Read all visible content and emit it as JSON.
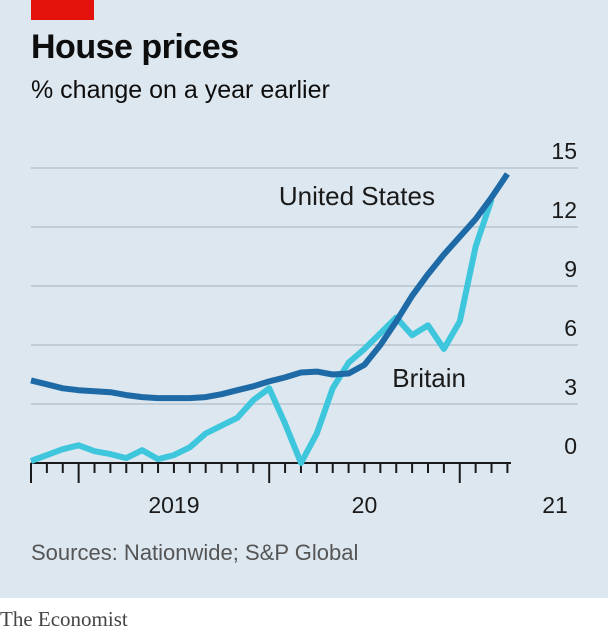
{
  "header": {
    "title": "House prices",
    "subtitle": "% change on a year earlier"
  },
  "footer": {
    "source": "Sources: Nationwide; S&P Global",
    "brand": "The Economist"
  },
  "colors": {
    "background": "#dce7ef",
    "accent_tag": "#e3120b",
    "united_states": "#1e6aa6",
    "britain": "#3ec6dd",
    "gridline": "#b7c4cd",
    "axis": "#1a1a1a"
  },
  "chart_data": {
    "type": "line",
    "title": "House prices",
    "subtitle": "% change on a year earlier",
    "xlabel": "",
    "ylabel": "",
    "x_range": [
      "2018-10",
      "2021-07"
    ],
    "ylim": [
      0,
      15
    ],
    "y_ticks": [
      0,
      3,
      6,
      9,
      12,
      15
    ],
    "y_tick_labels": [
      "0",
      "3",
      "6",
      "9",
      "12",
      "15"
    ],
    "y_axis_side": "right",
    "grid": true,
    "x_tick_labels": [
      {
        "label": "2019",
        "year": 2019
      },
      {
        "label": "20",
        "year": 2020
      },
      {
        "label": "21",
        "year": 2021
      }
    ],
    "series": [
      {
        "name": "United States",
        "color_key": "united_states",
        "points": [
          [
            "2018-10",
            4.2
          ],
          [
            "2018-11",
            4.0
          ],
          [
            "2018-12",
            3.8
          ],
          [
            "2019-01",
            3.7
          ],
          [
            "2019-02",
            3.65
          ],
          [
            "2019-03",
            3.6
          ],
          [
            "2019-04",
            3.45
          ],
          [
            "2019-05",
            3.35
          ],
          [
            "2019-06",
            3.3
          ],
          [
            "2019-07",
            3.3
          ],
          [
            "2019-08",
            3.3
          ],
          [
            "2019-09",
            3.35
          ],
          [
            "2019-10",
            3.5
          ],
          [
            "2019-11",
            3.7
          ],
          [
            "2019-12",
            3.9
          ],
          [
            "2020-01",
            4.15
          ],
          [
            "2020-02",
            4.35
          ],
          [
            "2020-03",
            4.6
          ],
          [
            "2020-04",
            4.65
          ],
          [
            "2020-05",
            4.5
          ],
          [
            "2020-06",
            4.55
          ],
          [
            "2020-07",
            5.0
          ],
          [
            "2020-08",
            6.0
          ],
          [
            "2020-09",
            7.2
          ],
          [
            "2020-10",
            8.5
          ],
          [
            "2020-11",
            9.6
          ],
          [
            "2020-12",
            10.6
          ],
          [
            "2021-01",
            11.5
          ],
          [
            "2021-02",
            12.4
          ],
          [
            "2021-03",
            13.5
          ],
          [
            "2021-04",
            14.7
          ]
        ]
      },
      {
        "name": "Britain",
        "color_key": "britain",
        "points": [
          [
            "2018-10",
            0.1
          ],
          [
            "2018-11",
            0.4
          ],
          [
            "2018-12",
            0.7
          ],
          [
            "2019-01",
            0.9
          ],
          [
            "2019-02",
            0.6
          ],
          [
            "2019-03",
            0.45
          ],
          [
            "2019-04",
            0.25
          ],
          [
            "2019-05",
            0.65
          ],
          [
            "2019-06",
            0.2
          ],
          [
            "2019-07",
            0.4
          ],
          [
            "2019-08",
            0.8
          ],
          [
            "2019-09",
            1.5
          ],
          [
            "2019-10",
            1.9
          ],
          [
            "2019-11",
            2.3
          ],
          [
            "2019-12",
            3.2
          ],
          [
            "2020-01",
            3.8
          ],
          [
            "2020-02",
            2.0
          ],
          [
            "2020-03",
            0.0
          ],
          [
            "2020-04",
            1.5
          ],
          [
            "2020-05",
            3.8
          ],
          [
            "2020-06",
            5.1
          ],
          [
            "2020-07",
            5.8
          ],
          [
            "2020-08",
            6.6
          ],
          [
            "2020-09",
            7.4
          ],
          [
            "2020-10",
            6.5
          ],
          [
            "2020-11",
            7.0
          ],
          [
            "2020-12",
            5.8
          ],
          [
            "2021-01",
            7.2
          ],
          [
            "2021-02",
            11.0
          ],
          [
            "2021-03",
            13.4
          ]
        ]
      }
    ],
    "annotations": [
      {
        "text": "United States",
        "series": "United States"
      },
      {
        "text": "Britain",
        "series": "Britain"
      }
    ]
  }
}
